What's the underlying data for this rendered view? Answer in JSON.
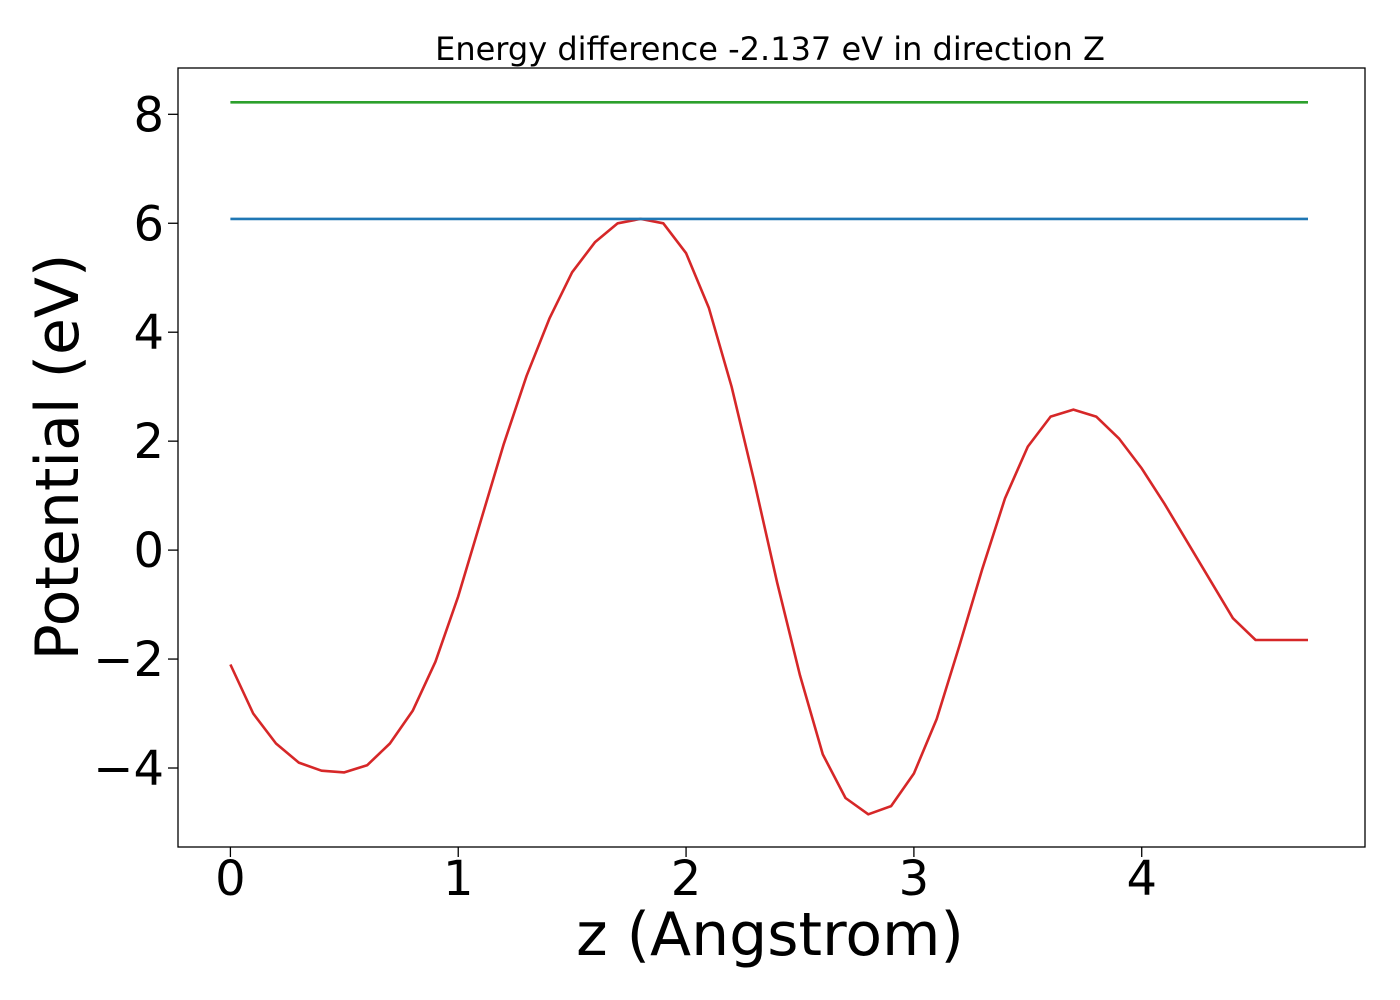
{
  "chart_data": {
    "type": "line",
    "title": "Energy difference -2.137 eV in direction Z",
    "xlabel": "z (Angstrom)",
    "ylabel": "Potential (eV)",
    "xlim": [
      -0.23,
      4.98
    ],
    "ylim": [
      -5.45,
      8.85
    ],
    "xticks": [
      0,
      1,
      2,
      3,
      4
    ],
    "xtick_labels": [
      "0",
      "1",
      "2",
      "3",
      "4"
    ],
    "yticks": [
      -4,
      -2,
      0,
      2,
      4,
      6,
      8
    ],
    "ytick_labels": [
      "−4",
      "−2",
      "0",
      "2",
      "4",
      "6",
      "8"
    ],
    "grid": false,
    "series": [
      {
        "color": "#d62728",
        "x": [
          0,
          0.1,
          0.2,
          0.3,
          0.4,
          0.5,
          0.6,
          0.7,
          0.8,
          0.9,
          1.0,
          1.1,
          1.2,
          1.3,
          1.4,
          1.5,
          1.6,
          1.7,
          1.8,
          1.9,
          2.0,
          2.1,
          2.2,
          2.3,
          2.4,
          2.5,
          2.6,
          2.7,
          2.8,
          2.9,
          3.0,
          3.1,
          3.2,
          3.3,
          3.4,
          3.5,
          3.6,
          3.7,
          3.8,
          3.9,
          4.0,
          4.1,
          4.2,
          4.3,
          4.4,
          4.5,
          4.6,
          4.73
        ],
        "y": [
          -2.1,
          -3.0,
          -3.55,
          -3.9,
          -4.05,
          -4.08,
          -3.95,
          -3.55,
          -2.95,
          -2.05,
          -0.85,
          0.55,
          1.95,
          3.2,
          4.25,
          5.1,
          5.65,
          6.0,
          6.08,
          6.0,
          5.45,
          4.45,
          3.0,
          1.25,
          -0.6,
          -2.3,
          -3.75,
          -4.55,
          -4.85,
          -4.7,
          -4.1,
          -3.1,
          -1.75,
          -0.35,
          0.95,
          1.9,
          2.45,
          2.58,
          2.45,
          2.05,
          1.5,
          0.85,
          0.15,
          -0.55,
          -1.25,
          -1.65,
          -1.65,
          -1.65
        ]
      },
      {
        "color": "#1f77b4",
        "x": [
          0,
          4.73
        ],
        "y": [
          6.08,
          6.08
        ]
      },
      {
        "color": "#2ca02c",
        "x": [
          0,
          4.73
        ],
        "y": [
          8.22,
          8.22
        ]
      }
    ]
  }
}
